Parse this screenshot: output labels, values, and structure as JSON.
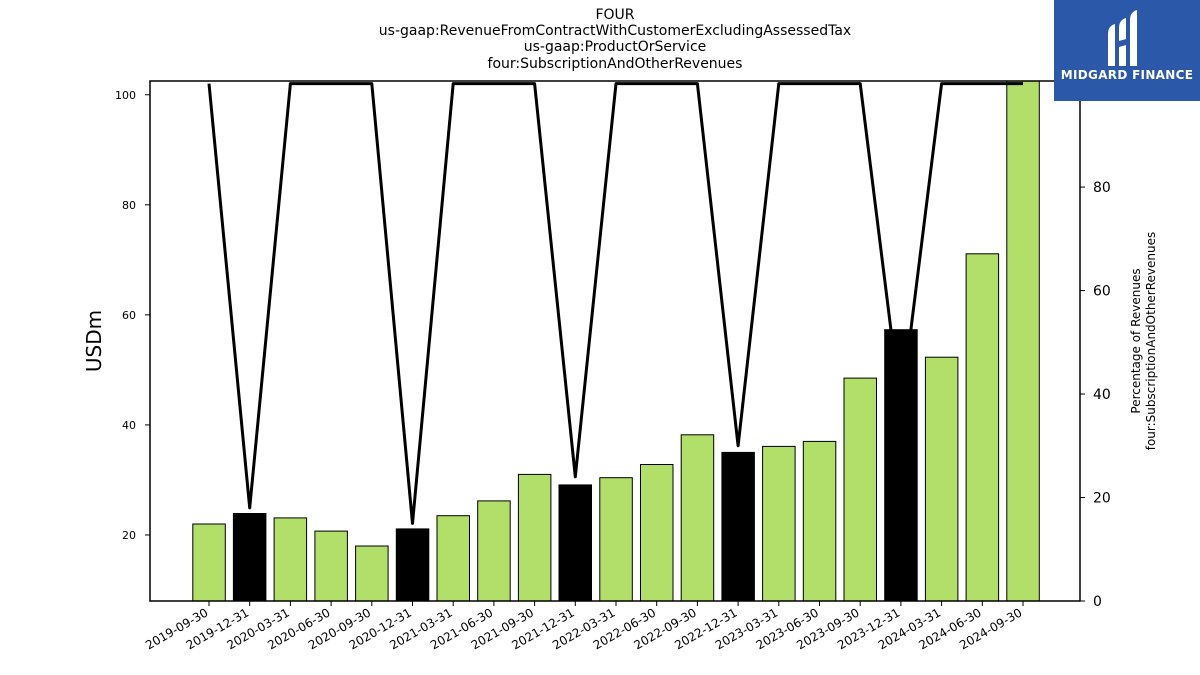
{
  "chart_data": {
    "type": "bar",
    "title_lines": [
      "FOUR",
      "us-gaap:RevenueFromContractWithCustomerExcludingAssessedTax",
      "us-gaap:ProductOrService",
      "four:SubscriptionAndOtherRevenues"
    ],
    "ylabel_left": "USDm",
    "ylabel_right_lines": [
      "Percentage of Revenues",
      "four:SubscriptionAndOtherRevenues"
    ],
    "categories": [
      "2019-09-30",
      "2019-12-31",
      "2020-03-31",
      "2020-06-30",
      "2020-09-30",
      "2020-12-31",
      "2021-03-31",
      "2021-06-30",
      "2021-09-30",
      "2021-12-31",
      "2022-03-31",
      "2022-06-30",
      "2022-09-30",
      "2022-12-31",
      "2023-03-31",
      "2023-06-30",
      "2023-09-30",
      "2023-12-31",
      "2024-03-31",
      "2024-06-30",
      "2024-09-30"
    ],
    "bar_values": [
      22.0,
      23.9,
      23.1,
      20.7,
      18.0,
      21.1,
      23.5,
      26.2,
      31.0,
      29.1,
      30.4,
      32.8,
      38.2,
      35.0,
      36.1,
      37.0,
      48.5,
      57.3,
      52.3,
      71.1,
      103.0
    ],
    "bar_colors": [
      "#b2df6a",
      "#000000",
      "#b2df6a",
      "#b2df6a",
      "#b2df6a",
      "#000000",
      "#b2df6a",
      "#b2df6a",
      "#b2df6a",
      "#000000",
      "#b2df6a",
      "#b2df6a",
      "#b2df6a",
      "#000000",
      "#b2df6a",
      "#b2df6a",
      "#b2df6a",
      "#000000",
      "#b2df6a",
      "#b2df6a",
      "#b2df6a"
    ],
    "line_values": [
      100,
      18,
      100,
      100,
      100,
      15,
      100,
      100,
      100,
      24,
      100,
      100,
      100,
      30,
      100,
      100,
      100,
      37,
      100,
      100,
      100
    ],
    "ylim_left": [
      8,
      102.5
    ],
    "ylim_right": [
      0,
      100.5
    ],
    "yticks_left": [
      20,
      40,
      60,
      80,
      100
    ],
    "yticks_right": [
      0,
      20,
      40,
      60,
      80,
      100
    ],
    "grid": false,
    "line_color": "#000000"
  },
  "logo": {
    "text": "MIDGARD FINANCE",
    "bg": "#2b58a8"
  }
}
